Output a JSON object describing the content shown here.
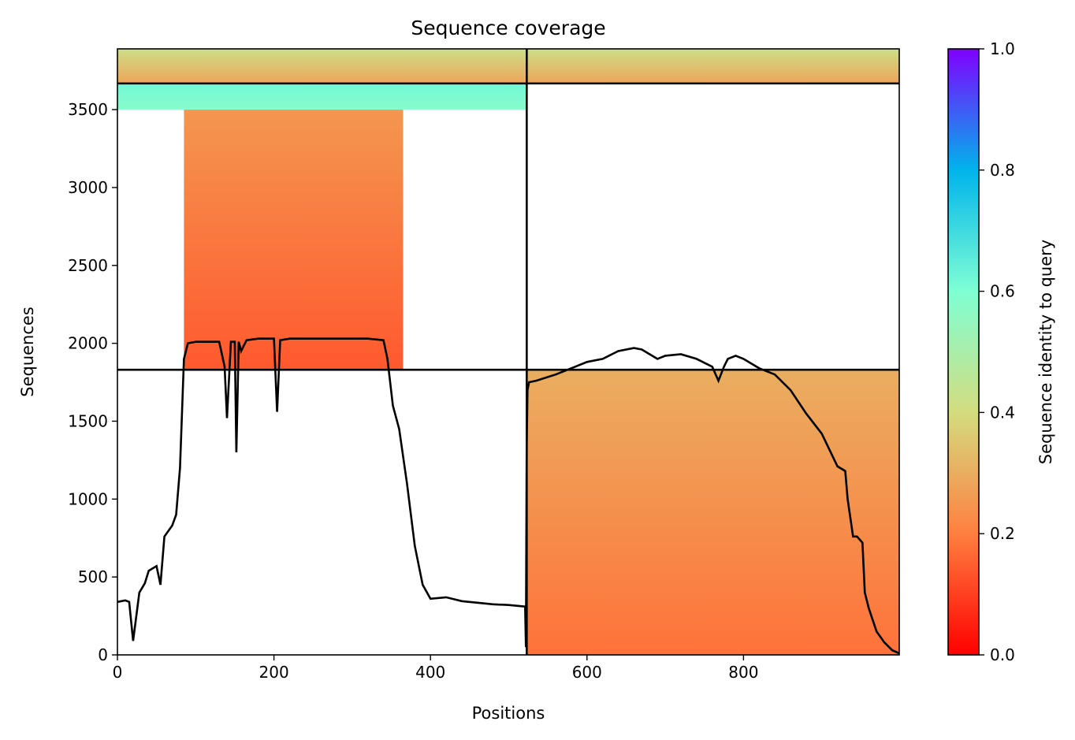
{
  "chart_data": {
    "type": "heatmap",
    "title": "Sequence coverage",
    "xlabel": "Positions",
    "ylabel": "Sequences",
    "xlim": [
      0,
      999
    ],
    "ylim": [
      0,
      3890
    ],
    "x_ticks": [
      "0",
      "200",
      "400",
      "600",
      "800"
    ],
    "x_tick_values": [
      0,
      200,
      400,
      600,
      800
    ],
    "y_ticks": [
      "0",
      "500",
      "1000",
      "1500",
      "2000",
      "2500",
      "3000",
      "3500"
    ],
    "y_tick_values": [
      0,
      500,
      1000,
      1500,
      2000,
      2500,
      3000,
      3500
    ],
    "colorbar": {
      "label": "Sequence identity to query",
      "range": [
        0.0,
        1.0
      ],
      "ticks": [
        "0.0",
        "0.2",
        "0.4",
        "0.6",
        "0.8",
        "1.0"
      ],
      "tick_values": [
        0.0,
        0.2,
        0.4,
        0.6,
        0.8,
        1.0
      ],
      "colormap": "rainbow_r",
      "colors": [
        "#ff0000",
        "#ff7f40",
        "#d4dc7f",
        "#7fffd4",
        "#00b4eb",
        "#8000ff"
      ]
    },
    "chain_boundary_x": 523,
    "group_boundaries_y": [
      1830,
      3668
    ],
    "blocks": [
      {
        "name": "chain A paired",
        "x_range": [
          0,
          523
        ],
        "y_range": [
          3668,
          3890
        ],
        "identity_bottom": 0.28,
        "identity_top": 0.42
      },
      {
        "name": "chain B paired",
        "x_range": [
          523,
          999
        ],
        "y_range": [
          3668,
          3890
        ],
        "identity_bottom": 0.28,
        "identity_top": 0.42
      },
      {
        "name": "chain A high identity",
        "x_range": [
          0,
          523
        ],
        "y_range": [
          3500,
          3668
        ],
        "identity_bottom": 0.58,
        "identity_top": 0.62
      },
      {
        "name": "chain A unpaired",
        "x_range": [
          85,
          365
        ],
        "y_range": [
          1830,
          3500
        ],
        "identity_bottom": 0.14,
        "identity_top": 0.25
      },
      {
        "name": "chain B unpaired",
        "x_range": [
          523,
          999
        ],
        "y_range": [
          0,
          1830
        ],
        "identity_bottom": 0.18,
        "identity_top": 0.3
      }
    ],
    "coverage_line": {
      "x": [
        0,
        10,
        15,
        20,
        28,
        35,
        40,
        50,
        55,
        60,
        70,
        75,
        80,
        85,
        90,
        100,
        110,
        130,
        137,
        140,
        145,
        150,
        152,
        155,
        158,
        165,
        180,
        200,
        204,
        208,
        220,
        240,
        260,
        280,
        300,
        320,
        340,
        345,
        352,
        360,
        370,
        380,
        390,
        400,
        420,
        440,
        460,
        480,
        500,
        521,
        522,
        523,
        524,
        526,
        535,
        560,
        580,
        600,
        620,
        640,
        660,
        670,
        690,
        700,
        720,
        740,
        760,
        768,
        775,
        780,
        790,
        800,
        820,
        840,
        860,
        880,
        900,
        920,
        930,
        933,
        940,
        945,
        952,
        955,
        960,
        970,
        980,
        990,
        999
      ],
      "y": [
        340,
        350,
        340,
        90,
        400,
        460,
        540,
        570,
        450,
        760,
        830,
        900,
        1200,
        1900,
        2000,
        2010,
        2010,
        2010,
        1850,
        1520,
        2010,
        2010,
        1300,
        2010,
        1950,
        2020,
        2030,
        2030,
        1560,
        2020,
        2030,
        2030,
        2030,
        2030,
        2030,
        2030,
        2020,
        1900,
        1600,
        1450,
        1100,
        700,
        450,
        360,
        370,
        345,
        335,
        325,
        320,
        310,
        50,
        1350,
        1700,
        1750,
        1760,
        1800,
        1840,
        1880,
        1900,
        1950,
        1970,
        1960,
        1900,
        1920,
        1930,
        1900,
        1850,
        1760,
        1850,
        1900,
        1920,
        1900,
        1840,
        1800,
        1700,
        1550,
        1420,
        1210,
        1180,
        1000,
        760,
        760,
        720,
        400,
        300,
        150,
        80,
        30,
        10
      ]
    }
  }
}
